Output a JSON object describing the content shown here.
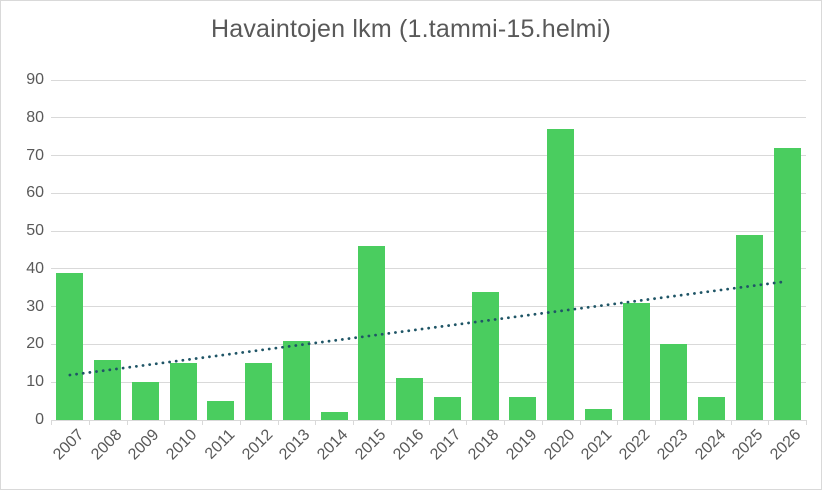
{
  "chart_data": {
    "type": "bar",
    "title": "Havaintojen lkm (1.tammi-15.helmi)",
    "categories": [
      "2007",
      "2008",
      "2009",
      "2010",
      "2011",
      "2012",
      "2013",
      "2014",
      "2015",
      "2016",
      "2017",
      "2018",
      "2019",
      "2020",
      "2021",
      "2022",
      "2023",
      "2024",
      "2025",
      "2026"
    ],
    "values": [
      39,
      16,
      10,
      15,
      5,
      15,
      21,
      2,
      46,
      11,
      6,
      34,
      6,
      77,
      3,
      31,
      20,
      6,
      49,
      72
    ],
    "xlabel": "",
    "ylabel": "",
    "ylim": [
      0,
      90
    ],
    "yticks": [
      0,
      10,
      20,
      30,
      40,
      50,
      60,
      70,
      80,
      90
    ],
    "grid": true,
    "legend": false,
    "trendline": {
      "type": "linear",
      "style": "dotted",
      "start_value": 11.9,
      "end_value": 36.7
    },
    "colors": {
      "bar": "#4acd5f",
      "trend": "#1f5566",
      "grid": "#d9d9d9",
      "text": "#595959",
      "background": "#ffffff",
      "border": "#d9d9d9"
    }
  }
}
